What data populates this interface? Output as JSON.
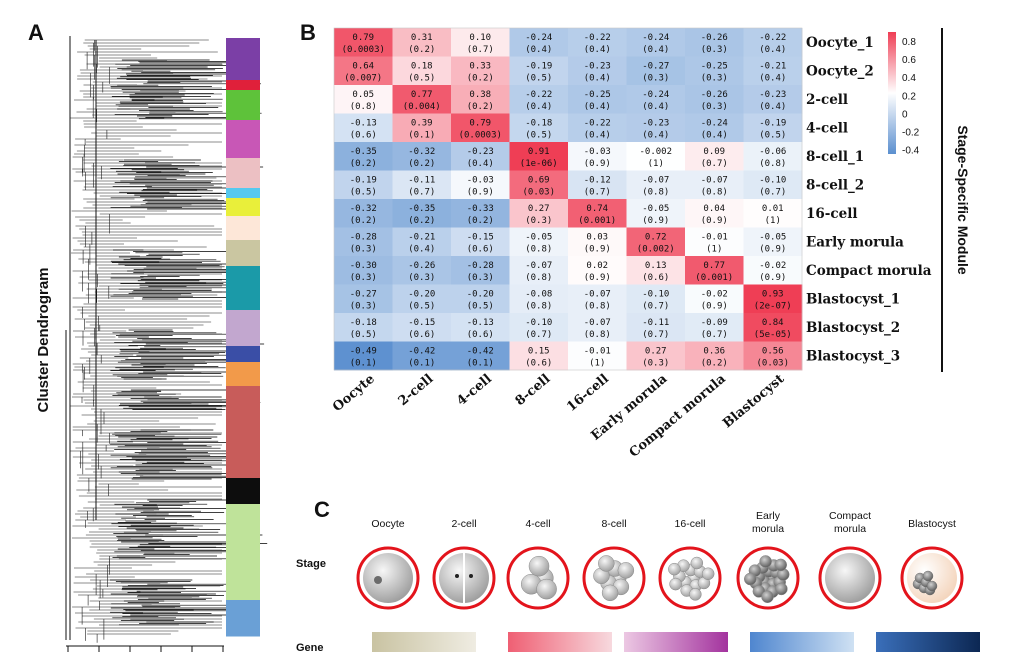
{
  "panels": {
    "a": "A",
    "b": "B",
    "c": "C"
  },
  "dendrogram": {
    "title": "Cluster Dendrogram",
    "module_colors": [
      "#7b3fa6",
      "#e0203a",
      "#5ec23a",
      "#c857b6",
      "#ecc0c3",
      "#56c9ef",
      "#e9ef3a",
      "#fde7d8",
      "#cac6a1",
      "#1b9aa8",
      "#c2a7cf",
      "#3a4ea6",
      "#f29a4a",
      "#c85c5a",
      "#0d0d0d",
      "#bfe39a",
      "#6aa0d6"
    ],
    "module_weights": [
      42,
      10,
      30,
      38,
      30,
      10,
      18,
      24,
      26,
      44,
      36,
      16,
      24,
      92,
      26,
      96,
      36
    ]
  },
  "module_legend": {
    "title": "Stage-Specific Module",
    "ticks": [
      "0.8",
      "0.6",
      "0.4",
      "0.2",
      "0",
      "-0.2",
      "-0.4"
    ]
  },
  "chart_data": {
    "type": "heatmap",
    "title": "",
    "xlabel": "",
    "ylabel": "Stage-Specific Module",
    "color_range": [
      -0.5,
      0.9
    ],
    "columns": [
      "Oocyte",
      "2-cell",
      "4-cell",
      "8-cell",
      "16-cell",
      "Early morula",
      "Compact morula",
      "Blastocyst"
    ],
    "rows": [
      "Oocyte_1",
      "Oocyte_2",
      "2-cell",
      "4-cell",
      "8-cell_1",
      "8-cell_2",
      "16-cell",
      "Early morula",
      "Compact morula",
      "Blastocyst_1",
      "Blastocyst_2",
      "Blastocyst_3"
    ],
    "values": [
      [
        0.79,
        0.31,
        0.1,
        -0.24,
        -0.22,
        -0.24,
        -0.26,
        -0.22
      ],
      [
        0.64,
        0.18,
        0.33,
        -0.19,
        -0.23,
        -0.27,
        -0.25,
        -0.21
      ],
      [
        0.05,
        0.77,
        0.38,
        -0.22,
        -0.25,
        -0.24,
        -0.26,
        -0.23
      ],
      [
        -0.13,
        0.39,
        0.79,
        -0.18,
        -0.22,
        -0.23,
        -0.24,
        -0.19
      ],
      [
        -0.35,
        -0.32,
        -0.23,
        0.91,
        -0.03,
        -0.002,
        0.09,
        -0.06
      ],
      [
        -0.19,
        -0.11,
        -0.03,
        0.69,
        -0.12,
        -0.07,
        -0.07,
        -0.1
      ],
      [
        -0.32,
        -0.35,
        -0.33,
        0.27,
        0.74,
        -0.05,
        0.04,
        0.01
      ],
      [
        -0.28,
        -0.21,
        -0.15,
        -0.05,
        0.03,
        0.72,
        -0.01,
        -0.05
      ],
      [
        -0.3,
        -0.26,
        -0.28,
        -0.07,
        0.02,
        0.13,
        0.77,
        -0.02
      ],
      [
        -0.27,
        -0.2,
        -0.2,
        -0.08,
        -0.07,
        -0.1,
        -0.02,
        0.93
      ],
      [
        -0.18,
        -0.15,
        -0.13,
        -0.1,
        -0.07,
        -0.11,
        -0.09,
        0.84
      ],
      [
        -0.49,
        -0.42,
        -0.42,
        0.15,
        -0.01,
        0.27,
        0.36,
        0.56
      ]
    ],
    "value_labels": [
      [
        "0.79",
        "0.31",
        "0.10",
        "-0.24",
        "-0.22",
        "-0.24",
        "-0.26",
        "-0.22"
      ],
      [
        "0.64",
        "0.18",
        "0.33",
        "-0.19",
        "-0.23",
        "-0.27",
        "-0.25",
        "-0.21"
      ],
      [
        "0.05",
        "0.77",
        "0.38",
        "-0.22",
        "-0.25",
        "-0.24",
        "-0.26",
        "-0.23"
      ],
      [
        "-0.13",
        "0.39",
        "0.79",
        "-0.18",
        "-0.22",
        "-0.23",
        "-0.24",
        "-0.19"
      ],
      [
        "-0.35",
        "-0.32",
        "-0.23",
        "0.91",
        "-0.03",
        "-0.002",
        "0.09",
        "-0.06"
      ],
      [
        "-0.19",
        "-0.11",
        "-0.03",
        "0.69",
        "-0.12",
        "-0.07",
        "-0.07",
        "-0.10"
      ],
      [
        "-0.32",
        "-0.35",
        "-0.33",
        "0.27",
        "0.74",
        "-0.05",
        "0.04",
        "0.01"
      ],
      [
        "-0.28",
        "-0.21",
        "-0.15",
        "-0.05",
        "0.03",
        "0.72",
        "-0.01",
        "-0.05"
      ],
      [
        "-0.30",
        "-0.26",
        "-0.28",
        "-0.07",
        "0.02",
        "0.13",
        "0.77",
        "-0.02"
      ],
      [
        "-0.27",
        "-0.20",
        "-0.20",
        "-0.08",
        "-0.07",
        "-0.10",
        "-0.02",
        "0.93"
      ],
      [
        "-0.18",
        "-0.15",
        "-0.13",
        "-0.10",
        "-0.07",
        "-0.11",
        "-0.09",
        "0.84"
      ],
      [
        "-0.49",
        "-0.42",
        "-0.42",
        "0.15",
        "-0.01",
        "0.27",
        "0.36",
        "0.56"
      ]
    ],
    "pvalues": [
      [
        "(0.0003)",
        "(0.2)",
        "(0.7)",
        "(0.4)",
        "(0.4)",
        "(0.4)",
        "(0.3)",
        "(0.4)"
      ],
      [
        "(0.007)",
        "(0.5)",
        "(0.2)",
        "(0.5)",
        "(0.4)",
        "(0.3)",
        "(0.3)",
        "(0.4)"
      ],
      [
        "(0.8)",
        "(0.004)",
        "(0.2)",
        "(0.4)",
        "(0.4)",
        "(0.4)",
        "(0.3)",
        "(0.4)"
      ],
      [
        "(0.6)",
        "(0.1)",
        "(0.0003)",
        "(0.5)",
        "(0.4)",
        "(0.4)",
        "(0.4)",
        "(0.5)"
      ],
      [
        "(0.2)",
        "(0.2)",
        "(0.4)",
        "(1e-06)",
        "(0.9)",
        "(1)",
        "(0.7)",
        "(0.8)"
      ],
      [
        "(0.5)",
        "(0.7)",
        "(0.9)",
        "(0.03)",
        "(0.7)",
        "(0.8)",
        "(0.8)",
        "(0.7)"
      ],
      [
        "(0.2)",
        "(0.2)",
        "(0.2)",
        "(0.3)",
        "(0.001)",
        "(0.9)",
        "(0.9)",
        "(1)"
      ],
      [
        "(0.3)",
        "(0.4)",
        "(0.6)",
        "(0.8)",
        "(0.9)",
        "(0.002)",
        "(1)",
        "(0.9)"
      ],
      [
        "(0.3)",
        "(0.3)",
        "(0.3)",
        "(0.8)",
        "(0.9)",
        "(0.6)",
        "(0.001)",
        "(0.9)"
      ],
      [
        "(0.3)",
        "(0.5)",
        "(0.5)",
        "(0.8)",
        "(0.8)",
        "(0.7)",
        "(0.9)",
        "(2e-07)"
      ],
      [
        "(0.5)",
        "(0.6)",
        "(0.6)",
        "(0.7)",
        "(0.8)",
        "(0.7)",
        "(0.7)",
        "(5e-05)"
      ],
      [
        "(0.1)",
        "(0.1)",
        "(0.1)",
        "(0.6)",
        "(1)",
        "(0.3)",
        "(0.2)",
        "(0.03)"
      ]
    ]
  },
  "stage_panel": {
    "stage_row_label": "Stage",
    "gene_row_label": "Gene",
    "stages": [
      "Oocyte",
      "2-cell",
      "4-cell",
      "8-cell",
      "16-cell",
      "Early morula",
      "Compact morula",
      "Blastocyst"
    ],
    "gene_bars": [
      {
        "from": "#c9c3a2",
        "to": "#efece2"
      },
      {
        "from": "#ef5f73",
        "to": "#f7d9de"
      },
      {
        "from": "#ecc8e3",
        "to": "#a3339e"
      },
      {
        "from": "#4f86cf",
        "to": "#cfe1f3"
      },
      {
        "from": "#3a6fba",
        "to": "#0c2753"
      }
    ]
  },
  "colors": {
    "heat_negative": "#5b8fcf",
    "heat_zero": "#ffffff",
    "heat_positive": "#ef3e55",
    "embryo_ring": "#e3141c"
  }
}
